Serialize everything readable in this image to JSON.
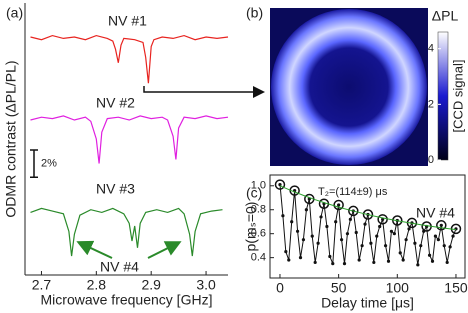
{
  "chart_data": [
    {
      "type": "line",
      "title": "(a)",
      "xlabel": "Microwave frequency [GHz]",
      "ylabel": "ODMR contrast (ΔPL/PL)",
      "xlim": [
        2.67,
        3.04
      ],
      "xticks": [
        2.7,
        2.8,
        2.9,
        {
          "value": 3,
          "label": "3.0"
        }
      ],
      "ylim": [
        -2,
        18
      ],
      "series": [
        {
          "name": "NV #1",
          "color": "#e8231f",
          "x": [
            2.68,
            2.7,
            2.72,
            2.74,
            2.76,
            2.78,
            2.8,
            2.82,
            2.83,
            2.835,
            2.84,
            2.845,
            2.85,
            2.87,
            2.885,
            2.89,
            2.895,
            2.9,
            2.905,
            2.92,
            2.94,
            2.96,
            2.98,
            3.0,
            3.02,
            3.04
          ],
          "values": [
            15.5,
            15.3,
            15.6,
            15.4,
            15.5,
            15.3,
            15.6,
            15.4,
            15.2,
            14.6,
            13.6,
            14.9,
            15.4,
            15.3,
            15.1,
            14.0,
            12.1,
            14.8,
            15.3,
            15.5,
            15.4,
            15.6,
            15.3,
            15.5,
            15.4,
            15.5
          ]
        },
        {
          "name": "NV #2",
          "color": "#e020e0",
          "x": [
            2.68,
            2.7,
            2.72,
            2.74,
            2.76,
            2.78,
            2.79,
            2.8,
            2.805,
            2.81,
            2.82,
            2.84,
            2.86,
            2.88,
            2.9,
            2.92,
            2.93,
            2.94,
            2.945,
            2.95,
            2.96,
            2.98,
            3.0,
            3.02,
            3.04
          ],
          "values": [
            9.4,
            9.6,
            9.5,
            9.7,
            9.4,
            9.6,
            9.3,
            8.0,
            6.2,
            8.5,
            9.5,
            9.6,
            9.4,
            9.7,
            9.5,
            9.6,
            9.4,
            8.2,
            6.5,
            8.8,
            9.6,
            9.5,
            9.7,
            9.5,
            9.6
          ]
        },
        {
          "name": "NV #3",
          "color": "#2a8a2a",
          "x": [
            2.68,
            2.7,
            2.72,
            2.74,
            2.75,
            2.755,
            2.76,
            2.77,
            2.79,
            2.81,
            2.83,
            2.85,
            2.86,
            2.865,
            2.87,
            2.875,
            2.88,
            2.89,
            2.91,
            2.93,
            2.95,
            2.96,
            2.97,
            2.975,
            2.98,
            2.99,
            3.01,
            3.03
          ],
          "values": [
            2.6,
            2.9,
            2.7,
            2.5,
            1.2,
            -0.6,
            1.0,
            2.4,
            2.8,
            2.6,
            2.9,
            2.5,
            1.8,
            0.5,
            1.6,
            0.0,
            1.8,
            2.6,
            2.8,
            2.6,
            2.9,
            2.5,
            1.0,
            -0.6,
            1.2,
            2.5,
            2.7,
            2.8
          ]
        }
      ],
      "annotations": [
        "NV #4"
      ],
      "scalebar": {
        "value": 2,
        "label": "2%"
      }
    },
    {
      "type": "image",
      "title": "(b)",
      "colorbar_title": "ΔPL",
      "colorbar_label": "[CCD signal]",
      "clim": [
        0,
        4.6
      ],
      "cticks": [
        0,
        2,
        4
      ],
      "colormap": [
        "#000018",
        "#1a1ad0",
        "#ffffff"
      ]
    },
    {
      "type": "line",
      "title": "(c)",
      "xlabel": "Delay time [μs]",
      "ylabel": "p(mₛ=0)",
      "xlim": [
        -8.5,
        157.7
      ],
      "xticks": [
        0,
        50,
        100,
        150
      ],
      "ylim": [
        0.23,
        1.09
      ],
      "yticks": [
        0.4,
        0.6,
        0.8,
        {
          "value": 1,
          "label": "1.0"
        }
      ],
      "series": [
        {
          "color": "#111111",
          "marker": "dot",
          "line": true,
          "x": [
            0,
            2.5,
            5,
            7.5,
            10,
            12.5,
            15,
            17.5,
            20,
            22.5,
            25,
            27.5,
            30,
            32.5,
            35,
            37.5,
            40,
            42.5,
            45,
            47.5,
            50,
            52.5,
            55,
            57.5,
            60,
            62.5,
            65,
            67.5,
            70,
            72.5,
            75,
            77.5,
            80,
            82.5,
            85,
            87.5,
            90,
            92.5,
            95,
            97.5,
            100,
            102.5,
            105,
            107.5,
            110,
            112.5,
            115,
            117.5,
            120,
            122.5,
            125,
            127.5,
            130,
            132.5,
            135,
            137.5,
            140,
            142.5,
            145,
            147.5,
            150
          ],
          "values": [
            1.01,
            0.75,
            0.45,
            0.38,
            0.7,
            0.96,
            0.62,
            0.4,
            0.55,
            0.8,
            0.89,
            0.58,
            0.36,
            0.52,
            0.74,
            0.85,
            0.66,
            0.41,
            0.35,
            0.7,
            0.84,
            0.55,
            0.35,
            0.6,
            0.72,
            0.79,
            0.61,
            0.38,
            0.5,
            0.68,
            0.76,
            0.52,
            0.36,
            0.58,
            0.66,
            0.72,
            0.5,
            0.37,
            0.62,
            0.6,
            0.71,
            0.44,
            0.38,
            0.55,
            0.64,
            0.69,
            0.52,
            0.34,
            0.5,
            0.62,
            0.66,
            0.42,
            0.37,
            0.58,
            0.55,
            0.67,
            0.5,
            0.36,
            0.49,
            0.58,
            0.64
          ]
        },
        {
          "color": "#111111",
          "marker": "ring",
          "line": false,
          "x": [
            0,
            12.5,
            25,
            37.5,
            50,
            62.5,
            75,
            87.5,
            100,
            112.5,
            125,
            137.5,
            150
          ],
          "values": [
            1.01,
            0.96,
            0.89,
            0.85,
            0.84,
            0.79,
            0.76,
            0.72,
            0.71,
            0.69,
            0.66,
            0.67,
            0.64
          ]
        },
        {
          "color": "#2ca02c",
          "marker": "none",
          "line": true,
          "x": [
            0,
            10,
            20,
            30,
            40,
            50,
            60,
            70,
            80,
            90,
            100,
            110,
            120,
            130,
            140,
            150
          ],
          "values": [
            1.0,
            0.958,
            0.92,
            0.884,
            0.852,
            0.822,
            0.795,
            0.771,
            0.748,
            0.727,
            0.708,
            0.691,
            0.675,
            0.66,
            0.647,
            0.634
          ]
        }
      ],
      "annotations": [
        "T₂=(114±9) μs",
        "NV #4"
      ]
    }
  ]
}
